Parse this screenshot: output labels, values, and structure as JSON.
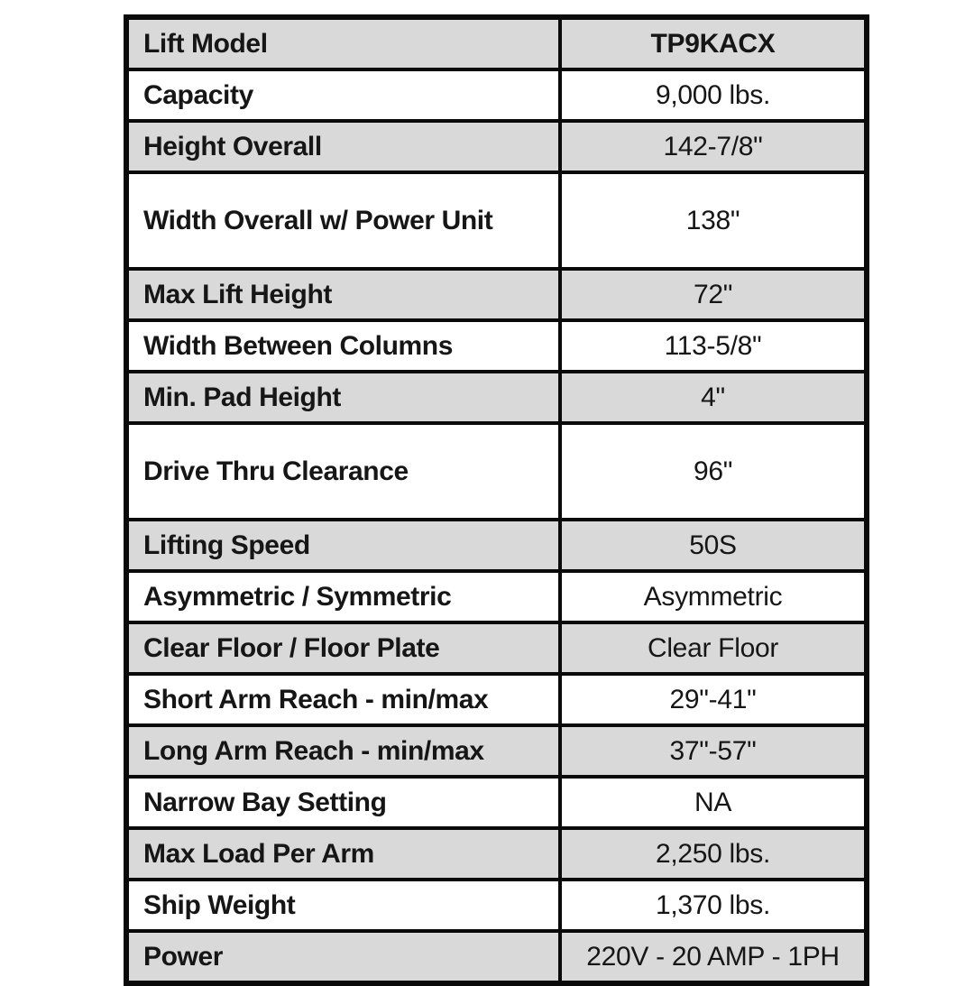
{
  "table": {
    "rows": [
      {
        "label": "Lift Model",
        "value": "TP9KACX"
      },
      {
        "label": "Capacity",
        "value": "9,000 lbs."
      },
      {
        "label": "Height Overall",
        "value": "142-7/8\""
      },
      {
        "label": "Width Overall w/ Power Unit",
        "value": "138\""
      },
      {
        "label": "Max Lift Height",
        "value": "72\""
      },
      {
        "label": "Width Between Columns",
        "value": "113-5/8\""
      },
      {
        "label": "Min. Pad Height",
        "value": "4\""
      },
      {
        "label": "Drive Thru Clearance",
        "value": "96\""
      },
      {
        "label": "Lifting Speed",
        "value": "50S"
      },
      {
        "label": "Asymmetric / Symmetric",
        "value": "Asymmetric"
      },
      {
        "label": "Clear Floor / Floor Plate",
        "value": "Clear Floor"
      },
      {
        "label": "Short Arm Reach - min/max",
        "value": "29\"-41\""
      },
      {
        "label": "Long Arm Reach - min/max",
        "value": "37\"-57\""
      },
      {
        "label": "Narrow Bay Setting",
        "value": "NA"
      },
      {
        "label": "Max Load Per Arm",
        "value": "2,250 lbs."
      },
      {
        "label": "Ship Weight",
        "value": "1,370 lbs."
      },
      {
        "label": "Power",
        "value": "220V - 20 AMP - 1PH"
      }
    ]
  },
  "colors": {
    "row_shade": "#d9d9d9",
    "row_white": "#ffffff",
    "border": "#0a0a0a",
    "text": "#161616"
  }
}
